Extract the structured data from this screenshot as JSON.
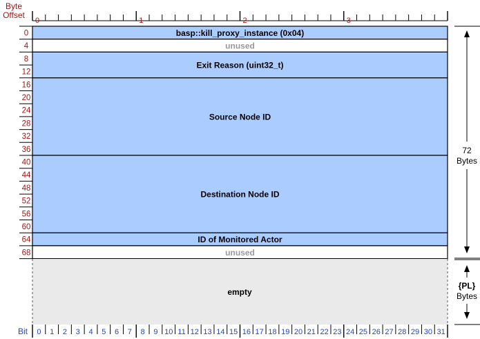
{
  "header": {
    "offset_title_line1": "Byte",
    "offset_title_line2": "Offset",
    "word_labels": [
      "0",
      "1",
      "2",
      "3"
    ]
  },
  "rows": {
    "offsets": [
      "0",
      "4",
      "8",
      "12",
      "16",
      "20",
      "24",
      "28",
      "32",
      "36",
      "40",
      "44",
      "48",
      "52",
      "56",
      "60",
      "64",
      "68"
    ]
  },
  "fields": [
    {
      "label": "basp::kill_proxy_instance (0x04)",
      "start": 0,
      "rows": 1,
      "style": "blue"
    },
    {
      "label": "unused",
      "start": 1,
      "rows": 1,
      "style": "unused"
    },
    {
      "label": "Exit Reason (uint32_t)",
      "start": 2,
      "rows": 2,
      "style": "blue"
    },
    {
      "label": "Source Node ID",
      "start": 4,
      "rows": 6,
      "style": "blue"
    },
    {
      "label": "Destination Node ID",
      "start": 10,
      "rows": 6,
      "style": "blue"
    },
    {
      "label": "ID of Monitored Actor",
      "start": 16,
      "rows": 1,
      "style": "blue"
    },
    {
      "label": "unused",
      "start": 17,
      "rows": 1,
      "style": "unused"
    }
  ],
  "payload": {
    "label": "empty"
  },
  "size": {
    "header_value": "72",
    "header_unit": "Bytes",
    "payload_value": "{PL}",
    "payload_unit": "Bytes"
  },
  "footer": {
    "bit_label": "Bit",
    "bits": [
      "0",
      "1",
      "2",
      "3",
      "4",
      "5",
      "6",
      "7",
      "8",
      "9",
      "10",
      "11",
      "12",
      "13",
      "14",
      "15",
      "16",
      "17",
      "18",
      "19",
      "20",
      "21",
      "22",
      "23",
      "24",
      "25",
      "26",
      "27",
      "28",
      "29",
      "30",
      "31"
    ]
  },
  "colors": {
    "field_fill": "#aaccff",
    "unused_fill": "#ffffff",
    "payload_fill": "#eaeaea",
    "unused_text": "#999999",
    "offset_text": "#a01818",
    "bit_text": "#2244cc"
  }
}
